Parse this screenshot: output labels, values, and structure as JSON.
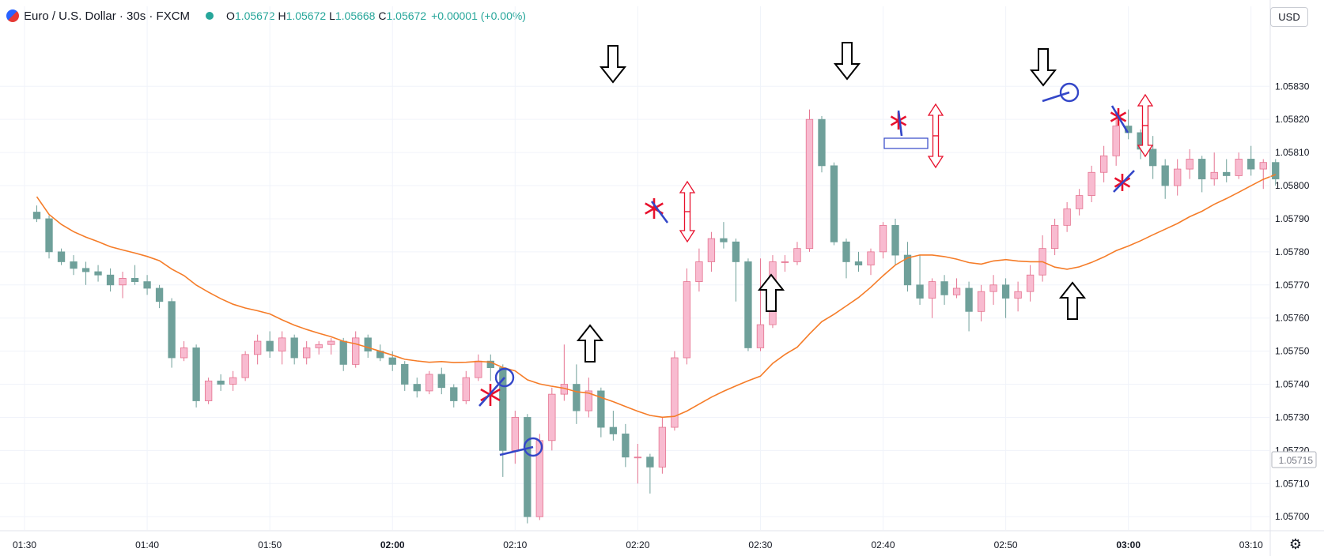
{
  "header": {
    "symbol": "Euro / U.S. Dollar · 30s · FXCM",
    "open_label": "O",
    "open": "1.05672",
    "high_label": "H",
    "high": "1.05672",
    "low_label": "L",
    "low": "1.05668",
    "close_label": "C",
    "close": "1.05672",
    "change": "+0.00001 (+0.00%)"
  },
  "currency": "USD",
  "price_label": "1.05715",
  "chart_data": {
    "type": "candlestick",
    "x_ticks": [
      {
        "t": -1,
        "label": "01:30",
        "bold": false
      },
      {
        "t": 9,
        "label": "01:40",
        "bold": false
      },
      {
        "t": 19,
        "label": "01:50",
        "bold": false
      },
      {
        "t": 29,
        "label": "02:00",
        "bold": true
      },
      {
        "t": 39,
        "label": "02:10",
        "bold": false
      },
      {
        "t": 49,
        "label": "02:20",
        "bold": false
      },
      {
        "t": 59,
        "label": "02:30",
        "bold": false
      },
      {
        "t": 69,
        "label": "02:40",
        "bold": false
      },
      {
        "t": 79,
        "label": "02:50",
        "bold": false
      },
      {
        "t": 89,
        "label": "03:00",
        "bold": true
      },
      {
        "t": 99,
        "label": "03:10",
        "bold": false
      }
    ],
    "y_ticks": [
      "1.05700",
      "1.05710",
      "1.05720",
      "1.05730",
      "1.05740",
      "1.05750",
      "1.05760",
      "1.05770",
      "1.05780",
      "1.05790",
      "1.05800",
      "1.05810",
      "1.05820",
      "1.05830"
    ],
    "y_range": [
      1.05696,
      1.05847
    ],
    "x_range": [
      -3,
      100.5
    ],
    "up_color": "#f8bbd0",
    "up_border": "#e57390",
    "down_color": "#6fa09a",
    "ma_color": "#f57c28",
    "annotation_blue": "#3346c8",
    "annotation_red": "#e8112d",
    "candles_ohlc": [
      [
        1.05792,
        1.05794,
        1.05789,
        1.0579
      ],
      [
        1.0579,
        1.05791,
        1.05778,
        1.0578
      ],
      [
        1.0578,
        1.05781,
        1.05776,
        1.05777
      ],
      [
        1.05777,
        1.05779,
        1.05773,
        1.05775
      ],
      [
        1.05775,
        1.05777,
        1.0577,
        1.05774
      ],
      [
        1.05774,
        1.05776,
        1.05771,
        1.05773
      ],
      [
        1.05773,
        1.05775,
        1.05768,
        1.0577
      ],
      [
        1.0577,
        1.05774,
        1.05766,
        1.05772
      ],
      [
        1.05772,
        1.05776,
        1.0577,
        1.05771
      ],
      [
        1.05771,
        1.05773,
        1.05767,
        1.05769
      ],
      [
        1.05769,
        1.0577,
        1.05763,
        1.05765
      ],
      [
        1.05765,
        1.05766,
        1.05745,
        1.05748
      ],
      [
        1.05748,
        1.05753,
        1.05747,
        1.05751
      ],
      [
        1.05751,
        1.05752,
        1.05733,
        1.05735
      ],
      [
        1.05735,
        1.05742,
        1.05734,
        1.05741
      ],
      [
        1.05741,
        1.05743,
        1.05738,
        1.0574
      ],
      [
        1.0574,
        1.05744,
        1.05738,
        1.05742
      ],
      [
        1.05742,
        1.0575,
        1.05741,
        1.05749
      ],
      [
        1.05749,
        1.05755,
        1.05746,
        1.05753
      ],
      [
        1.05753,
        1.05756,
        1.05748,
        1.0575
      ],
      [
        1.0575,
        1.05756,
        1.05746,
        1.05754
      ],
      [
        1.05754,
        1.05755,
        1.05746,
        1.05748
      ],
      [
        1.05748,
        1.05753,
        1.05746,
        1.05751
      ],
      [
        1.05751,
        1.05753,
        1.05749,
        1.05752
      ],
      [
        1.05752,
        1.05754,
        1.05749,
        1.05753
      ],
      [
        1.05753,
        1.05754,
        1.05744,
        1.05746
      ],
      [
        1.05746,
        1.05756,
        1.05745,
        1.05754
      ],
      [
        1.05754,
        1.05755,
        1.05748,
        1.0575
      ],
      [
        1.0575,
        1.05752,
        1.05747,
        1.05748
      ],
      [
        1.05748,
        1.0575,
        1.05744,
        1.05746
      ],
      [
        1.05746,
        1.05747,
        1.05738,
        1.0574
      ],
      [
        1.0574,
        1.05742,
        1.05736,
        1.05738
      ],
      [
        1.05738,
        1.05744,
        1.05737,
        1.05743
      ],
      [
        1.05743,
        1.05745,
        1.05737,
        1.05739
      ],
      [
        1.05739,
        1.0574,
        1.05733,
        1.05735
      ],
      [
        1.05735,
        1.05744,
        1.05734,
        1.05742
      ],
      [
        1.05742,
        1.05749,
        1.05741,
        1.05747
      ],
      [
        1.05747,
        1.05749,
        1.05741,
        1.05745
      ],
      [
        1.05745,
        1.05746,
        1.05712,
        1.0572
      ],
      [
        1.0572,
        1.05732,
        1.05716,
        1.0573
      ],
      [
        1.0573,
        1.05731,
        1.05698,
        1.057
      ],
      [
        1.057,
        1.05725,
        1.05699,
        1.05723
      ],
      [
        1.05723,
        1.05739,
        1.0572,
        1.05737
      ],
      [
        1.05737,
        1.05752,
        1.05735,
        1.0574
      ],
      [
        1.0574,
        1.05746,
        1.05728,
        1.05732
      ],
      [
        1.05732,
        1.05742,
        1.0573,
        1.05738
      ],
      [
        1.05738,
        1.05739,
        1.05724,
        1.05727
      ],
      [
        1.05727,
        1.05732,
        1.05723,
        1.05725
      ],
      [
        1.05725,
        1.05728,
        1.05715,
        1.05718
      ],
      [
        1.05718,
        1.05722,
        1.0571,
        1.05718
      ],
      [
        1.05718,
        1.05719,
        1.05707,
        1.05715
      ],
      [
        1.05715,
        1.0573,
        1.05713,
        1.05727
      ],
      [
        1.05727,
        1.0575,
        1.05726,
        1.05748
      ],
      [
        1.05748,
        1.05775,
        1.05746,
        1.05771
      ],
      [
        1.05771,
        1.05781,
        1.05768,
        1.05777
      ],
      [
        1.05777,
        1.05786,
        1.05774,
        1.05784
      ],
      [
        1.05784,
        1.05789,
        1.05781,
        1.05783
      ],
      [
        1.05783,
        1.05784,
        1.05765,
        1.05777
      ],
      [
        1.05777,
        1.05778,
        1.0575,
        1.05751
      ],
      [
        1.05751,
        1.05778,
        1.0575,
        1.05758
      ],
      [
        1.05758,
        1.05779,
        1.05757,
        1.05777
      ],
      [
        1.05777,
        1.05779,
        1.05774,
        1.05777
      ],
      [
        1.05777,
        1.05783,
        1.05776,
        1.05781
      ],
      [
        1.05781,
        1.05823,
        1.0578,
        1.0582
      ],
      [
        1.0582,
        1.05821,
        1.05804,
        1.05806
      ],
      [
        1.05806,
        1.05807,
        1.05782,
        1.05783
      ],
      [
        1.05783,
        1.05784,
        1.05772,
        1.05777
      ],
      [
        1.05777,
        1.0578,
        1.05774,
        1.05776
      ],
      [
        1.05776,
        1.05781,
        1.05773,
        1.0578
      ],
      [
        1.0578,
        1.05789,
        1.05778,
        1.05788
      ],
      [
        1.05788,
        1.0579,
        1.05776,
        1.05779
      ],
      [
        1.05779,
        1.05783,
        1.05768,
        1.0577
      ],
      [
        1.0577,
        1.05779,
        1.05764,
        1.05766
      ],
      [
        1.05766,
        1.05772,
        1.0576,
        1.05771
      ],
      [
        1.05771,
        1.05773,
        1.05764,
        1.05767
      ],
      [
        1.05767,
        1.05772,
        1.05766,
        1.05769
      ],
      [
        1.05769,
        1.05771,
        1.05756,
        1.05762
      ],
      [
        1.05762,
        1.0577,
        1.05759,
        1.05768
      ],
      [
        1.05768,
        1.05773,
        1.05764,
        1.0577
      ],
      [
        1.0577,
        1.05772,
        1.0576,
        1.05766
      ],
      [
        1.05766,
        1.05771,
        1.05762,
        1.05768
      ],
      [
        1.05768,
        1.05776,
        1.05765,
        1.05773
      ],
      [
        1.05773,
        1.05785,
        1.05771,
        1.05781
      ],
      [
        1.05781,
        1.0579,
        1.05779,
        1.05788
      ],
      [
        1.05788,
        1.05795,
        1.05786,
        1.05793
      ],
      [
        1.05793,
        1.05799,
        1.05791,
        1.05797
      ],
      [
        1.05797,
        1.05806,
        1.05795,
        1.05804
      ],
      [
        1.05804,
        1.05812,
        1.05801,
        1.05809
      ],
      [
        1.05809,
        1.0582,
        1.05806,
        1.05818
      ],
      [
        1.05818,
        1.05823,
        1.05814,
        1.05816
      ],
      [
        1.05816,
        1.05817,
        1.05808,
        1.05811
      ],
      [
        1.05811,
        1.05815,
        1.05802,
        1.05806
      ],
      [
        1.05806,
        1.05808,
        1.05796,
        1.058
      ],
      [
        1.058,
        1.05808,
        1.05797,
        1.05805
      ],
      [
        1.05805,
        1.05811,
        1.05802,
        1.05808
      ],
      [
        1.05808,
        1.05809,
        1.05798,
        1.05802
      ],
      [
        1.05802,
        1.0581,
        1.058,
        1.05804
      ],
      [
        1.05804,
        1.05808,
        1.05801,
        1.05803
      ],
      [
        1.05803,
        1.0581,
        1.05802,
        1.05808
      ],
      [
        1.05808,
        1.05812,
        1.05803,
        1.05805
      ],
      [
        1.05805,
        1.05808,
        1.05799,
        1.05807
      ],
      [
        1.05807,
        1.05808,
        1.058,
        1.05802
      ]
    ]
  }
}
